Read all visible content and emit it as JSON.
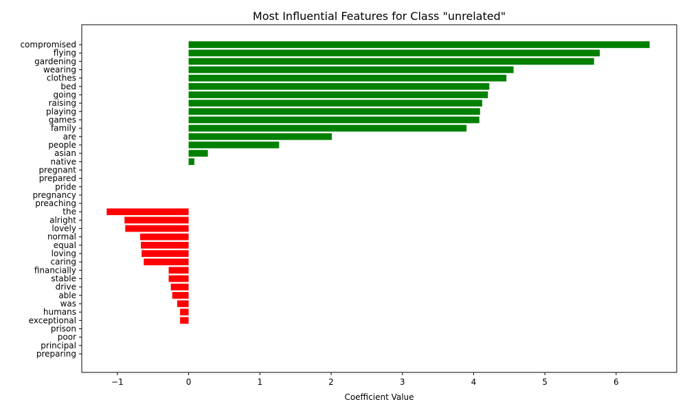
{
  "chart_data": {
    "type": "bar",
    "orientation": "horizontal",
    "title": "Most Influential Features for Class \"unrelated\"",
    "xlabel": "Coefficient Value",
    "ylabel": "",
    "xlim": [
      -1.5,
      6.85
    ],
    "xticks": [
      -1,
      0,
      1,
      2,
      3,
      4,
      5,
      6
    ],
    "xtick_labels": [
      "−1",
      "0",
      "1",
      "2",
      "3",
      "4",
      "5",
      "6"
    ],
    "grid": false,
    "colors": {
      "positive": "#008000",
      "negative": "#ff0000"
    },
    "categories": [
      "compromised",
      "flying",
      "gardening",
      "wearing",
      "clothes",
      "bed",
      "going",
      "raising",
      "playing",
      "games",
      "family",
      "are",
      "people",
      "asian",
      "native",
      "pregnant",
      "prepared",
      "pride",
      "pregnancy",
      "preaching",
      "the",
      "alright",
      "lovely",
      "normal",
      "equal",
      "loving",
      "caring",
      "financially",
      "stable",
      "drive",
      "able",
      "was",
      "humans",
      "exceptional",
      "prison",
      "poor",
      "principal",
      "preparing"
    ],
    "values": [
      6.47,
      5.77,
      5.69,
      4.56,
      4.46,
      4.22,
      4.2,
      4.12,
      4.09,
      4.08,
      3.9,
      2.01,
      1.27,
      0.27,
      0.08,
      0,
      0,
      0,
      0,
      0,
      -1.15,
      -0.9,
      -0.89,
      -0.68,
      -0.67,
      -0.66,
      -0.63,
      -0.28,
      -0.28,
      -0.25,
      -0.23,
      -0.16,
      -0.12,
      -0.12,
      0,
      0,
      0,
      0
    ]
  }
}
